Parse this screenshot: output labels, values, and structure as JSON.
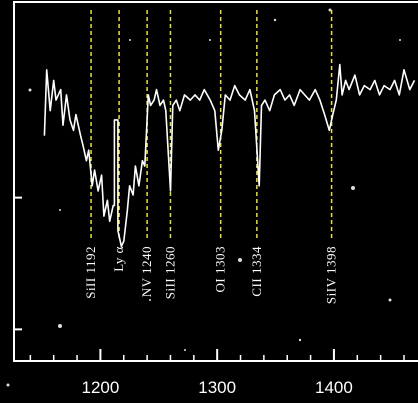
{
  "chart_data": {
    "type": "line",
    "x": [
      1152,
      1154,
      1157,
      1160,
      1162,
      1166,
      1168,
      1171,
      1174,
      1177,
      1179,
      1183,
      1185,
      1188,
      1190,
      1193,
      1195,
      1198,
      1201,
      1203,
      1206,
      1208,
      1211,
      1212,
      1212,
      1215,
      1215,
      1218,
      1220,
      1223,
      1225,
      1228,
      1230,
      1233,
      1236,
      1238,
      1241,
      1243,
      1246,
      1248,
      1251,
      1254,
      1256,
      1260,
      1262,
      1265,
      1268,
      1272,
      1277,
      1281,
      1285,
      1289,
      1294,
      1298,
      1301,
      1304,
      1307,
      1311,
      1315,
      1319,
      1324,
      1328,
      1332,
      1336,
      1338,
      1341,
      1345,
      1349,
      1354,
      1358,
      1362,
      1366,
      1371,
      1375,
      1379,
      1384,
      1388,
      1392,
      1396,
      1399,
      1402,
      1405,
      1407,
      1410,
      1413,
      1418,
      1422,
      1426,
      1431,
      1435,
      1439,
      1443,
      1448,
      1452,
      1456,
      1460,
      1465,
      1469
    ],
    "series": [
      {
        "color": "#ffffff",
        "values": [
          1.47,
          1.97,
          1.66,
          1.89,
          1.74,
          1.82,
          1.55,
          1.78,
          1.59,
          1.51,
          1.63,
          1.47,
          1.4,
          1.28,
          1.36,
          1.09,
          1.21,
          1.05,
          1.17,
          0.86,
          0.98,
          0.82,
          0.94,
          0.94,
          1.59,
          1.59,
          0.75,
          0.63,
          0.67,
          0.9,
          1.09,
          1.02,
          1.24,
          1.09,
          1.28,
          1.24,
          1.78,
          1.7,
          1.74,
          1.82,
          1.7,
          1.74,
          1.66,
          1.05,
          1.7,
          1.74,
          1.66,
          1.78,
          1.74,
          1.78,
          1.74,
          1.82,
          1.74,
          1.66,
          1.36,
          1.51,
          1.78,
          1.74,
          1.85,
          1.78,
          1.74,
          1.82,
          1.66,
          1.09,
          1.7,
          1.74,
          1.66,
          1.78,
          1.82,
          1.74,
          1.78,
          1.7,
          1.82,
          1.78,
          1.74,
          1.82,
          1.74,
          1.63,
          1.51,
          1.63,
          1.74,
          2.01,
          1.78,
          1.89,
          1.82,
          1.93,
          1.78,
          1.85,
          1.82,
          1.89,
          1.78,
          1.85,
          1.82,
          1.89,
          1.78,
          1.97,
          1.82,
          1.89
        ]
      }
    ],
    "xlim": [
      1126,
      1472
    ],
    "ylim": [
      -0.24,
      2.5
    ],
    "xticks": [
      1200,
      1300,
      1400
    ],
    "xminorticks": [
      1140,
      1160,
      1180,
      1220,
      1240,
      1260,
      1280,
      1320,
      1340,
      1360,
      1380,
      1420,
      1440,
      1460
    ],
    "yticks": [
      0,
      1
    ],
    "lines": [
      {
        "label": "SiII 1192",
        "wavelength": 1192
      },
      {
        "label": "Ly α",
        "wavelength": 1216
      },
      {
        "label": "NV 1240",
        "wavelength": 1240
      },
      {
        "label": "SiII 1260",
        "wavelength": 1260
      },
      {
        "label": "OI 1303",
        "wavelength": 1303
      },
      {
        "label": "CII 1334",
        "wavelength": 1334
      },
      {
        "label": "SiIV 1398",
        "wavelength": 1398
      }
    ],
    "line_color": "#e8e040"
  }
}
